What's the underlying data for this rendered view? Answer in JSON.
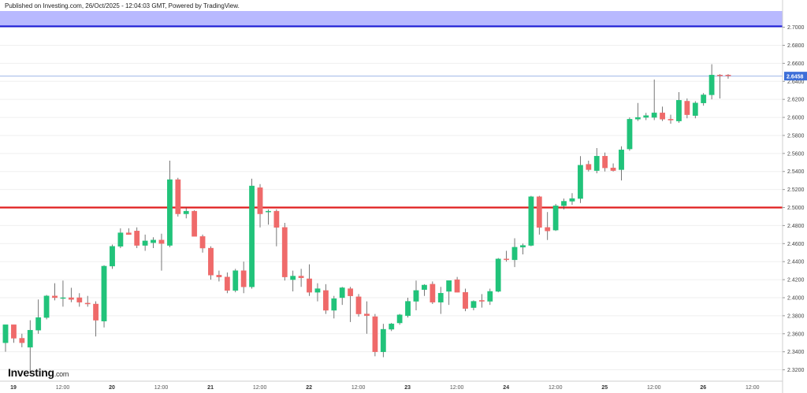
{
  "header": {
    "published": "Published on Investing.com, 26/Oct/2025 - 12:04:03 GMT, Powered by TradingView."
  },
  "logo": {
    "brand": "Investing",
    "suffix": ".com"
  },
  "colors": {
    "up": "#21c37a",
    "down": "#ef6a6a",
    "wick": "#555555",
    "zone": "#b8b9ff",
    "blue_line": "#1d1dd6",
    "red_line": "#e01e1e",
    "last_line": "#9fb7e8",
    "price_badge": "#3d6fd8",
    "grid": "#efefef"
  },
  "chart_data": {
    "type": "candlestick",
    "y_range": [
      2.31,
      2.718
    ],
    "y_ticks": [
      "2.7000",
      "2.6800",
      "2.6600",
      "2.6400",
      "2.6200",
      "2.6000",
      "2.5800",
      "2.5600",
      "2.5400",
      "2.5200",
      "2.5000",
      "2.4800",
      "2.4600",
      "2.4400",
      "2.4200",
      "2.4000",
      "2.3800",
      "2.3600",
      "2.3400",
      "2.3200"
    ],
    "x_labels": [
      "19",
      "12:00",
      "20",
      "12:00",
      "21",
      "12:00",
      "22",
      "12:00",
      "23",
      "12:00",
      "24",
      "12:00",
      "25",
      "12:00",
      "26",
      "12:00"
    ],
    "last_price": "2.6458",
    "horizontal_lines": [
      {
        "name": "blue-level",
        "value": 2.701
      },
      {
        "name": "red-level",
        "value": 2.5
      }
    ],
    "zone_top": 2.718,
    "candles": [
      {
        "o": 2.35,
        "h": 2.37,
        "l": 2.34,
        "c": 2.37
      },
      {
        "o": 2.37,
        "h": 2.37,
        "l": 2.35,
        "c": 2.355
      },
      {
        "o": 2.355,
        "h": 2.36,
        "l": 2.345,
        "c": 2.35
      },
      {
        "o": 2.345,
        "h": 2.375,
        "l": 2.318,
        "c": 2.364
      },
      {
        "o": 2.364,
        "h": 2.398,
        "l": 2.36,
        "c": 2.378
      },
      {
        "o": 2.378,
        "h": 2.403,
        "l": 2.376,
        "c": 2.402
      },
      {
        "o": 2.402,
        "h": 2.416,
        "l": 2.397,
        "c": 2.4
      },
      {
        "o": 2.4,
        "h": 2.419,
        "l": 2.39,
        "c": 2.4
      },
      {
        "o": 2.4,
        "h": 2.411,
        "l": 2.395,
        "c": 2.398
      },
      {
        "o": 2.4,
        "h": 2.405,
        "l": 2.39,
        "c": 2.395
      },
      {
        "o": 2.394,
        "h": 2.402,
        "l": 2.39,
        "c": 2.393
      },
      {
        "o": 2.393,
        "h": 2.396,
        "l": 2.357,
        "c": 2.375
      },
      {
        "o": 2.374,
        "h": 2.436,
        "l": 2.367,
        "c": 2.435
      },
      {
        "o": 2.435,
        "h": 2.459,
        "l": 2.432,
        "c": 2.457
      },
      {
        "o": 2.457,
        "h": 2.477,
        "l": 2.455,
        "c": 2.472
      },
      {
        "o": 2.472,
        "h": 2.477,
        "l": 2.47,
        "c": 2.47
      },
      {
        "o": 2.474,
        "h": 2.478,
        "l": 2.455,
        "c": 2.458
      },
      {
        "o": 2.458,
        "h": 2.47,
        "l": 2.452,
        "c": 2.463
      },
      {
        "o": 2.461,
        "h": 2.467,
        "l": 2.455,
        "c": 2.464
      },
      {
        "o": 2.464,
        "h": 2.471,
        "l": 2.43,
        "c": 2.46
      },
      {
        "o": 2.458,
        "h": 2.552,
        "l": 2.456,
        "c": 2.531
      },
      {
        "o": 2.531,
        "h": 2.533,
        "l": 2.49,
        "c": 2.493
      },
      {
        "o": 2.493,
        "h": 2.5,
        "l": 2.488,
        "c": 2.496
      },
      {
        "o": 2.496,
        "h": 2.497,
        "l": 2.47,
        "c": 2.468
      },
      {
        "o": 2.468,
        "h": 2.47,
        "l": 2.45,
        "c": 2.455
      },
      {
        "o": 2.455,
        "h": 2.457,
        "l": 2.42,
        "c": 2.425
      },
      {
        "o": 2.425,
        "h": 2.43,
        "l": 2.418,
        "c": 2.423
      },
      {
        "o": 2.423,
        "h": 2.428,
        "l": 2.405,
        "c": 2.408
      },
      {
        "o": 2.408,
        "h": 2.432,
        "l": 2.406,
        "c": 2.43
      },
      {
        "o": 2.43,
        "h": 2.44,
        "l": 2.405,
        "c": 2.412
      },
      {
        "o": 2.412,
        "h": 2.532,
        "l": 2.41,
        "c": 2.524
      },
      {
        "o": 2.522,
        "h": 2.526,
        "l": 2.478,
        "c": 2.493
      },
      {
        "o": 2.495,
        "h": 2.498,
        "l": 2.481,
        "c": 2.496
      },
      {
        "o": 2.496,
        "h": 2.498,
        "l": 2.457,
        "c": 2.478
      },
      {
        "o": 2.478,
        "h": 2.483,
        "l": 2.419,
        "c": 2.423
      },
      {
        "o": 2.42,
        "h": 2.43,
        "l": 2.407,
        "c": 2.424
      },
      {
        "o": 2.424,
        "h": 2.432,
        "l": 2.412,
        "c": 2.422
      },
      {
        "o": 2.421,
        "h": 2.437,
        "l": 2.402,
        "c": 2.406
      },
      {
        "o": 2.406,
        "h": 2.416,
        "l": 2.396,
        "c": 2.41
      },
      {
        "o": 2.408,
        "h": 2.415,
        "l": 2.382,
        "c": 2.386
      },
      {
        "o": 2.386,
        "h": 2.402,
        "l": 2.377,
        "c": 2.399
      },
      {
        "o": 2.4,
        "h": 2.412,
        "l": 2.392,
        "c": 2.411
      },
      {
        "o": 2.41,
        "h": 2.412,
        "l": 2.373,
        "c": 2.402
      },
      {
        "o": 2.401,
        "h": 2.404,
        "l": 2.379,
        "c": 2.382
      },
      {
        "o": 2.382,
        "h": 2.396,
        "l": 2.36,
        "c": 2.38
      },
      {
        "o": 2.379,
        "h": 2.382,
        "l": 2.335,
        "c": 2.34
      },
      {
        "o": 2.34,
        "h": 2.371,
        "l": 2.334,
        "c": 2.365
      },
      {
        "o": 2.365,
        "h": 2.372,
        "l": 2.363,
        "c": 2.371
      },
      {
        "o": 2.372,
        "h": 2.382,
        "l": 2.37,
        "c": 2.381
      },
      {
        "o": 2.38,
        "h": 2.4,
        "l": 2.378,
        "c": 2.396
      },
      {
        "o": 2.396,
        "h": 2.419,
        "l": 2.386,
        "c": 2.408
      },
      {
        "o": 2.409,
        "h": 2.415,
        "l": 2.402,
        "c": 2.414
      },
      {
        "o": 2.415,
        "h": 2.418,
        "l": 2.393,
        "c": 2.395
      },
      {
        "o": 2.395,
        "h": 2.412,
        "l": 2.382,
        "c": 2.405
      },
      {
        "o": 2.407,
        "h": 2.416,
        "l": 2.392,
        "c": 2.419
      },
      {
        "o": 2.42,
        "h": 2.423,
        "l": 2.406,
        "c": 2.406
      },
      {
        "o": 2.406,
        "h": 2.41,
        "l": 2.385,
        "c": 2.388
      },
      {
        "o": 2.389,
        "h": 2.397,
        "l": 2.386,
        "c": 2.396
      },
      {
        "o": 2.397,
        "h": 2.404,
        "l": 2.389,
        "c": 2.396
      },
      {
        "o": 2.396,
        "h": 2.41,
        "l": 2.392,
        "c": 2.407
      },
      {
        "o": 2.407,
        "h": 2.444,
        "l": 2.406,
        "c": 2.443
      },
      {
        "o": 2.443,
        "h": 2.452,
        "l": 2.44,
        "c": 2.442
      },
      {
        "o": 2.442,
        "h": 2.466,
        "l": 2.434,
        "c": 2.456
      },
      {
        "o": 2.456,
        "h": 2.46,
        "l": 2.448,
        "c": 2.458
      },
      {
        "o": 2.458,
        "h": 2.513,
        "l": 2.457,
        "c": 2.512
      },
      {
        "o": 2.512,
        "h": 2.513,
        "l": 2.47,
        "c": 2.478
      },
      {
        "o": 2.478,
        "h": 2.495,
        "l": 2.464,
        "c": 2.474
      },
      {
        "o": 2.475,
        "h": 2.504,
        "l": 2.474,
        "c": 2.502
      },
      {
        "o": 2.502,
        "h": 2.51,
        "l": 2.498,
        "c": 2.507
      },
      {
        "o": 2.507,
        "h": 2.516,
        "l": 2.503,
        "c": 2.51
      },
      {
        "o": 2.51,
        "h": 2.557,
        "l": 2.505,
        "c": 2.547
      },
      {
        "o": 2.548,
        "h": 2.552,
        "l": 2.54,
        "c": 2.542
      },
      {
        "o": 2.541,
        "h": 2.566,
        "l": 2.538,
        "c": 2.557
      },
      {
        "o": 2.557,
        "h": 2.561,
        "l": 2.54,
        "c": 2.544
      },
      {
        "o": 2.544,
        "h": 2.549,
        "l": 2.54,
        "c": 2.541
      },
      {
        "o": 2.542,
        "h": 2.568,
        "l": 2.53,
        "c": 2.564
      },
      {
        "o": 2.565,
        "h": 2.6,
        "l": 2.563,
        "c": 2.598
      },
      {
        "o": 2.598,
        "h": 2.616,
        "l": 2.596,
        "c": 2.6
      },
      {
        "o": 2.6,
        "h": 2.605,
        "l": 2.597,
        "c": 2.602
      },
      {
        "o": 2.6,
        "h": 2.642,
        "l": 2.597,
        "c": 2.605
      },
      {
        "o": 2.605,
        "h": 2.612,
        "l": 2.596,
        "c": 2.598
      },
      {
        "o": 2.598,
        "h": 2.603,
        "l": 2.593,
        "c": 2.597
      },
      {
        "o": 2.596,
        "h": 2.628,
        "l": 2.594,
        "c": 2.619
      },
      {
        "o": 2.618,
        "h": 2.621,
        "l": 2.599,
        "c": 2.603
      },
      {
        "o": 2.602,
        "h": 2.618,
        "l": 2.599,
        "c": 2.616
      },
      {
        "o": 2.616,
        "h": 2.627,
        "l": 2.613,
        "c": 2.625
      },
      {
        "o": 2.625,
        "h": 2.659,
        "l": 2.62,
        "c": 2.647
      },
      {
        "o": 2.647,
        "h": 2.648,
        "l": 2.621,
        "c": 2.646
      },
      {
        "o": 2.647,
        "h": 2.648,
        "l": 2.643,
        "c": 2.646
      }
    ]
  }
}
